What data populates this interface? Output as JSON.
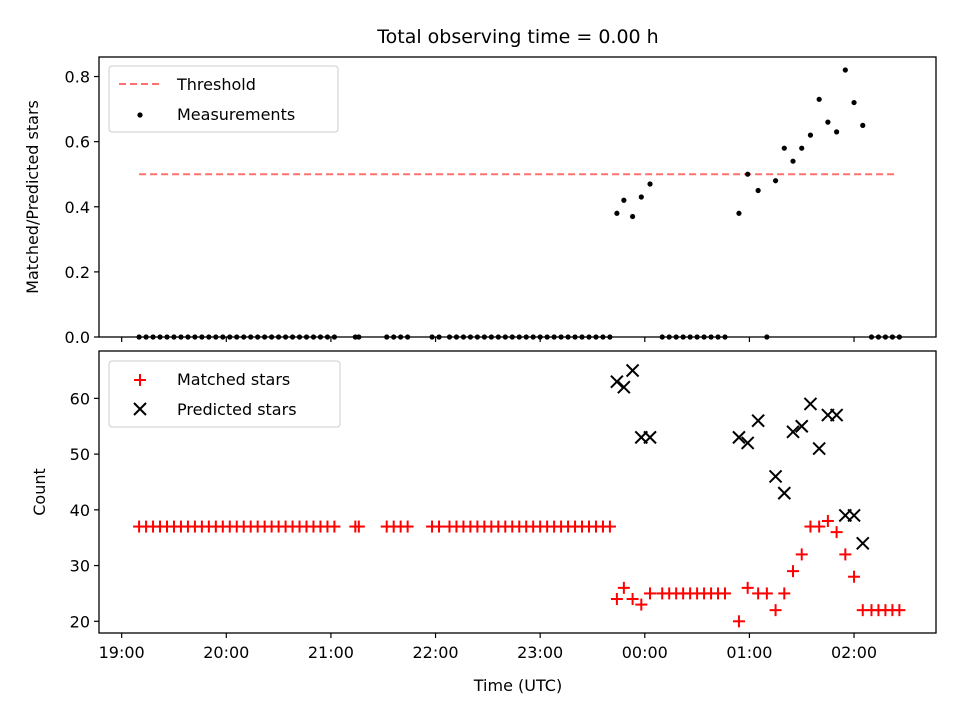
{
  "chart_data": [
    {
      "type": "scatter",
      "ylabel": "Matched/Predicted stars",
      "title": "Total observing time = 0.00 h",
      "ylim": [
        0,
        0.86
      ],
      "yticks": [
        "0.0",
        "0.2",
        "0.4",
        "0.6",
        "0.8"
      ],
      "ytick_values": [
        0,
        0.2,
        0.4,
        0.6,
        0.8
      ],
      "legend_position": "upper left",
      "threshold": {
        "name": "Threshold",
        "value": 0.5,
        "x_start": "19:10",
        "x_end": "02:24",
        "color": "#ff7070"
      },
      "series": [
        {
          "name": "Measurements",
          "color": "#000000",
          "marker": "dot",
          "points": [
            [
              "19:10",
              0
            ],
            [
              "19:14",
              0
            ],
            [
              "19:18",
              0
            ],
            [
              "19:22",
              0
            ],
            [
              "19:26",
              0
            ],
            [
              "19:30",
              0
            ],
            [
              "19:34",
              0
            ],
            [
              "19:38",
              0
            ],
            [
              "19:42",
              0
            ],
            [
              "19:46",
              0
            ],
            [
              "19:50",
              0
            ],
            [
              "19:54",
              0
            ],
            [
              "19:58",
              0
            ],
            [
              "20:02",
              0
            ],
            [
              "20:06",
              0
            ],
            [
              "20:10",
              0
            ],
            [
              "20:14",
              0
            ],
            [
              "20:18",
              0
            ],
            [
              "20:22",
              0
            ],
            [
              "20:26",
              0
            ],
            [
              "20:30",
              0
            ],
            [
              "20:34",
              0
            ],
            [
              "20:38",
              0
            ],
            [
              "20:42",
              0
            ],
            [
              "20:46",
              0
            ],
            [
              "20:50",
              0
            ],
            [
              "20:54",
              0
            ],
            [
              "20:58",
              0
            ],
            [
              "21:02",
              0
            ],
            [
              "21:14",
              0
            ],
            [
              "21:16",
              0
            ],
            [
              "21:32",
              0
            ],
            [
              "21:36",
              0
            ],
            [
              "21:40",
              0
            ],
            [
              "21:44",
              0
            ],
            [
              "21:58",
              0
            ],
            [
              "22:02",
              0
            ],
            [
              "22:08",
              0
            ],
            [
              "22:12",
              0
            ],
            [
              "22:16",
              0
            ],
            [
              "22:20",
              0
            ],
            [
              "22:24",
              0
            ],
            [
              "22:28",
              0
            ],
            [
              "22:32",
              0
            ],
            [
              "22:36",
              0
            ],
            [
              "22:40",
              0
            ],
            [
              "22:44",
              0
            ],
            [
              "22:48",
              0
            ],
            [
              "22:52",
              0
            ],
            [
              "22:56",
              0
            ],
            [
              "23:00",
              0
            ],
            [
              "23:04",
              0
            ],
            [
              "23:08",
              0
            ],
            [
              "23:12",
              0
            ],
            [
              "23:16",
              0
            ],
            [
              "23:20",
              0
            ],
            [
              "23:24",
              0
            ],
            [
              "23:28",
              0
            ],
            [
              "23:32",
              0
            ],
            [
              "23:36",
              0
            ],
            [
              "23:40",
              0
            ],
            [
              "23:44",
              0.38
            ],
            [
              "23:48",
              0.42
            ],
            [
              "23:53",
              0.37
            ],
            [
              "23:58",
              0.43
            ],
            [
              "00:03",
              0.47
            ],
            [
              "00:10",
              0
            ],
            [
              "00:14",
              0
            ],
            [
              "00:18",
              0
            ],
            [
              "00:22",
              0
            ],
            [
              "00:26",
              0
            ],
            [
              "00:30",
              0
            ],
            [
              "00:34",
              0
            ],
            [
              "00:38",
              0
            ],
            [
              "00:42",
              0
            ],
            [
              "00:46",
              0
            ],
            [
              "00:54",
              0.38
            ],
            [
              "00:59",
              0.5
            ],
            [
              "01:05",
              0.45
            ],
            [
              "01:10",
              0
            ],
            [
              "01:15",
              0.48
            ],
            [
              "01:20",
              0.58
            ],
            [
              "01:25",
              0.54
            ],
            [
              "01:30",
              0.58
            ],
            [
              "01:35",
              0.62
            ],
            [
              "01:40",
              0.73
            ],
            [
              "01:45",
              0.66
            ],
            [
              "01:50",
              0.63
            ],
            [
              "01:55",
              0.82
            ],
            [
              "02:00",
              0.72
            ],
            [
              "02:05",
              0.65
            ],
            [
              "02:10",
              0
            ],
            [
              "02:14",
              0
            ],
            [
              "02:18",
              0
            ],
            [
              "02:22",
              0
            ],
            [
              "02:26",
              0
            ]
          ]
        }
      ]
    },
    {
      "type": "scatter",
      "xlabel": "Time (UTC)",
      "ylabel": "Count",
      "ylim": [
        17.9,
        68.5
      ],
      "yticks": [
        "20",
        "30",
        "40",
        "50",
        "60"
      ],
      "ytick_values": [
        20,
        30,
        40,
        50,
        60
      ],
      "xlim": [
        "18:47",
        "02:47"
      ],
      "xticks": [
        "19:00",
        "20:00",
        "21:00",
        "22:00",
        "23:00",
        "00:00",
        "01:00",
        "02:00"
      ],
      "legend_position": "upper left",
      "series": [
        {
          "name": "Matched stars",
          "color": "#ff0000",
          "marker": "plus",
          "points": [
            [
              "19:10",
              37
            ],
            [
              "19:14",
              37
            ],
            [
              "19:18",
              37
            ],
            [
              "19:22",
              37
            ],
            [
              "19:26",
              37
            ],
            [
              "19:30",
              37
            ],
            [
              "19:34",
              37
            ],
            [
              "19:38",
              37
            ],
            [
              "19:42",
              37
            ],
            [
              "19:46",
              37
            ],
            [
              "19:50",
              37
            ],
            [
              "19:54",
              37
            ],
            [
              "19:58",
              37
            ],
            [
              "20:02",
              37
            ],
            [
              "20:06",
              37
            ],
            [
              "20:10",
              37
            ],
            [
              "20:14",
              37
            ],
            [
              "20:18",
              37
            ],
            [
              "20:22",
              37
            ],
            [
              "20:26",
              37
            ],
            [
              "20:30",
              37
            ],
            [
              "20:34",
              37
            ],
            [
              "20:38",
              37
            ],
            [
              "20:42",
              37
            ],
            [
              "20:46",
              37
            ],
            [
              "20:50",
              37
            ],
            [
              "20:54",
              37
            ],
            [
              "20:58",
              37
            ],
            [
              "21:02",
              37
            ],
            [
              "21:14",
              37
            ],
            [
              "21:16",
              37
            ],
            [
              "21:32",
              37
            ],
            [
              "21:36",
              37
            ],
            [
              "21:40",
              37
            ],
            [
              "21:44",
              37
            ],
            [
              "21:58",
              37
            ],
            [
              "22:02",
              37
            ],
            [
              "22:08",
              37
            ],
            [
              "22:12",
              37
            ],
            [
              "22:16",
              37
            ],
            [
              "22:20",
              37
            ],
            [
              "22:24",
              37
            ],
            [
              "22:28",
              37
            ],
            [
              "22:32",
              37
            ],
            [
              "22:36",
              37
            ],
            [
              "22:40",
              37
            ],
            [
              "22:44",
              37
            ],
            [
              "22:48",
              37
            ],
            [
              "22:52",
              37
            ],
            [
              "22:56",
              37
            ],
            [
              "23:00",
              37
            ],
            [
              "23:04",
              37
            ],
            [
              "23:08",
              37
            ],
            [
              "23:12",
              37
            ],
            [
              "23:16",
              37
            ],
            [
              "23:20",
              37
            ],
            [
              "23:24",
              37
            ],
            [
              "23:28",
              37
            ],
            [
              "23:32",
              37
            ],
            [
              "23:36",
              37
            ],
            [
              "23:40",
              37
            ],
            [
              "23:44",
              24
            ],
            [
              "23:48",
              26
            ],
            [
              "23:53",
              24
            ],
            [
              "23:58",
              23
            ],
            [
              "00:03",
              25
            ],
            [
              "00:10",
              25
            ],
            [
              "00:14",
              25
            ],
            [
              "00:18",
              25
            ],
            [
              "00:22",
              25
            ],
            [
              "00:26",
              25
            ],
            [
              "00:30",
              25
            ],
            [
              "00:34",
              25
            ],
            [
              "00:38",
              25
            ],
            [
              "00:42",
              25
            ],
            [
              "00:46",
              25
            ],
            [
              "00:54",
              20
            ],
            [
              "00:59",
              26
            ],
            [
              "01:05",
              25
            ],
            [
              "01:10",
              25
            ],
            [
              "01:15",
              22
            ],
            [
              "01:20",
              25
            ],
            [
              "01:25",
              29
            ],
            [
              "01:30",
              32
            ],
            [
              "01:35",
              37
            ],
            [
              "01:40",
              37
            ],
            [
              "01:45",
              38
            ],
            [
              "01:50",
              36
            ],
            [
              "01:55",
              32
            ],
            [
              "02:00",
              28
            ],
            [
              "02:05",
              22
            ],
            [
              "02:10",
              22
            ],
            [
              "02:14",
              22
            ],
            [
              "02:18",
              22
            ],
            [
              "02:22",
              22
            ],
            [
              "02:26",
              22
            ]
          ]
        },
        {
          "name": "Predicted stars",
          "color": "#000000",
          "marker": "x",
          "points": [
            [
              "23:44",
              63
            ],
            [
              "23:48",
              62
            ],
            [
              "23:53",
              65
            ],
            [
              "23:58",
              53
            ],
            [
              "00:03",
              53
            ],
            [
              "00:54",
              53
            ],
            [
              "00:59",
              52
            ],
            [
              "01:05",
              56
            ],
            [
              "01:15",
              46
            ],
            [
              "01:20",
              43
            ],
            [
              "01:25",
              54
            ],
            [
              "01:30",
              55
            ],
            [
              "01:35",
              59
            ],
            [
              "01:40",
              51
            ],
            [
              "01:45",
              57
            ],
            [
              "01:50",
              57
            ],
            [
              "01:55",
              39
            ],
            [
              "02:00",
              39
            ],
            [
              "02:05",
              34
            ]
          ]
        }
      ]
    }
  ]
}
